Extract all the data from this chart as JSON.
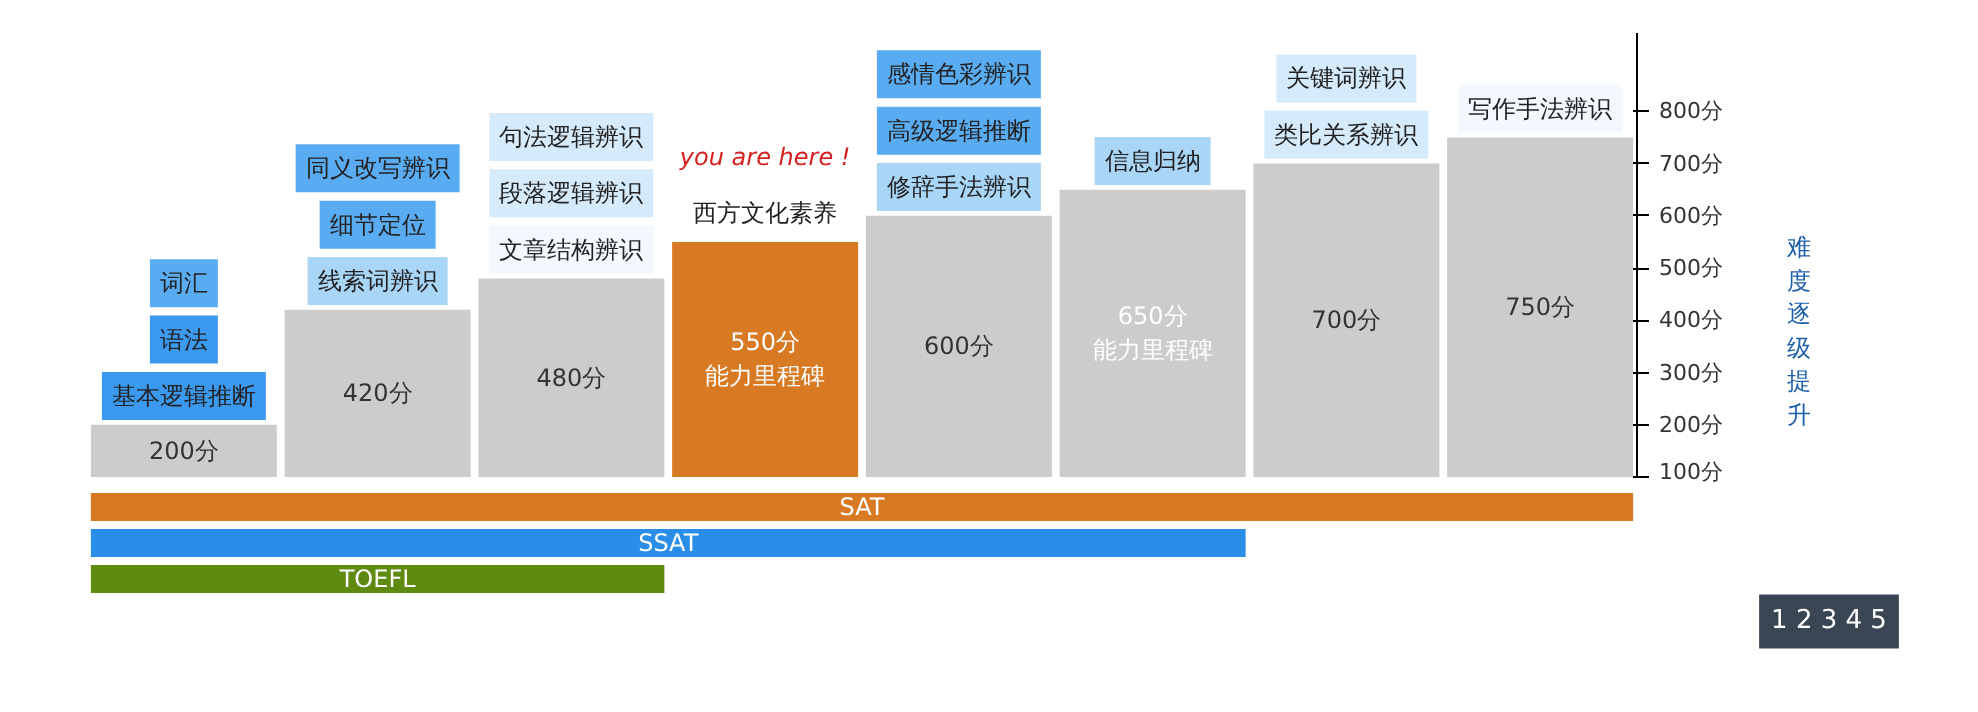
{
  "chart_data": {
    "type": "bar",
    "categories": [
      null,
      null,
      null,
      null,
      null,
      null,
      null,
      null
    ],
    "values": [
      200,
      420,
      480,
      550,
      600,
      650,
      700,
      750
    ],
    "colors": [
      "#cccccc",
      "#cccccc",
      "#cccccc",
      "#d87a24",
      "#cccccc",
      "#cccccc",
      "#cccccc",
      "#cccccc"
    ],
    "value_labels": [
      "200分",
      "420分",
      "480分",
      "550分能力里程碑",
      "600分",
      "650分能力里程碑",
      "700分",
      "750分"
    ],
    "ylim": [
      100,
      950
    ],
    "yticks": [
      {
        "value": 100,
        "label": "100分"
      },
      {
        "value": 200,
        "label": "200分"
      },
      {
        "value": 300,
        "label": "300分"
      },
      {
        "value": 400,
        "label": "400分"
      },
      {
        "value": 500,
        "label": "500分"
      },
      {
        "value": 600,
        "label": "600分"
      },
      {
        "value": 700,
        "label": "700分"
      },
      {
        "value": 800,
        "label": "800分"
      }
    ],
    "tick_labels": "y",
    "grid": false,
    "annotations": [
      "基本逻辑推断",
      "语法",
      "词汇",
      "线索词辨识",
      "细节定位",
      "同义改写辨识",
      "文章结构辨识",
      "段落逻辑辨识",
      "句法逻辑辨识",
      "西方文化素养",
      "you are here !",
      "修辞手法辨识",
      "高级逻辑推断",
      "感情色彩辨识",
      "信息归纳",
      "类比关系辨识",
      "关键词辨识",
      "写作手法辨识",
      "SAT",
      "SSAT",
      "TOEFL",
      "难度逐级提升",
      "1 2 3 4 5"
    ]
  }
}
